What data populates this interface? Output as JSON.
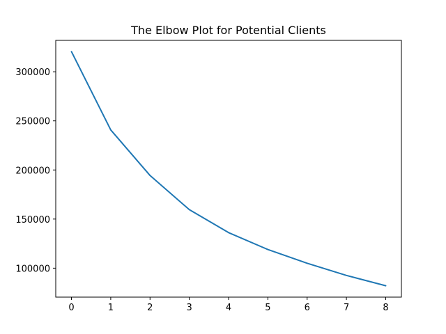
{
  "chart_data": {
    "type": "line",
    "title": "The Elbow Plot for Potential Clients",
    "xlabel": "",
    "ylabel": "",
    "x": [
      0,
      1,
      2,
      3,
      4,
      5,
      6,
      7,
      8
    ],
    "series": [
      {
        "values": [
          320500,
          240800,
          194400,
          159600,
          136200,
          119000,
          105000,
          92600,
          82100
        ],
        "color": "#1f77b4"
      }
    ],
    "xlim": [
      -0.4,
      8.4
    ],
    "ylim": [
      70500,
      332000
    ],
    "x_ticks": [
      0,
      1,
      2,
      3,
      4,
      5,
      6,
      7,
      8
    ],
    "y_ticks": [
      100000,
      150000,
      200000,
      250000,
      300000
    ],
    "grid": false,
    "legend": false
  }
}
